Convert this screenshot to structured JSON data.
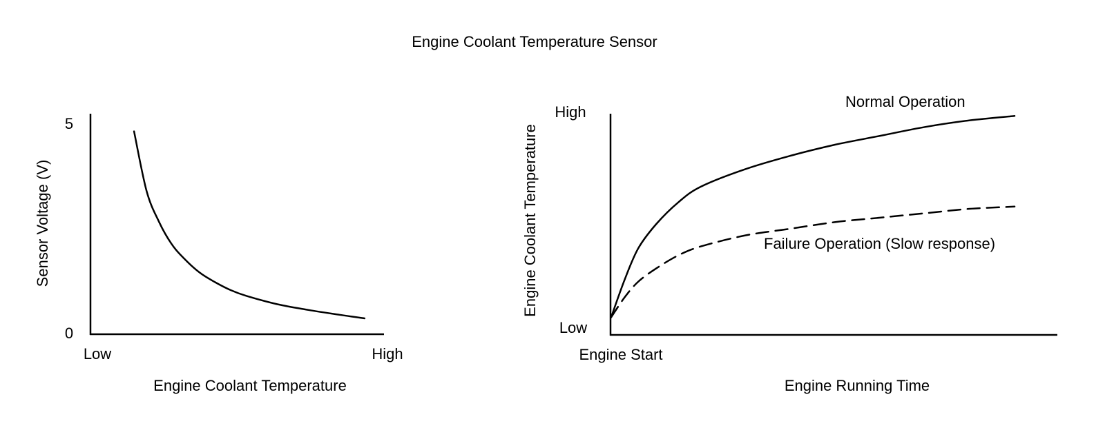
{
  "figure": {
    "title": "Engine Coolant Temperature Sensor"
  },
  "chart_data": [
    {
      "type": "line",
      "title": "",
      "xlabel": "Engine Coolant Temperature",
      "ylabel": "Sensor Voltage (V)",
      "x_ticks": [
        "Low",
        "High"
      ],
      "y_ticks": [
        "0",
        "5"
      ],
      "xlim": [
        0,
        1
      ],
      "ylim": [
        0,
        5
      ],
      "grid": false,
      "series": [
        {
          "name": "",
          "style": "solid",
          "color": "#000000",
          "x": [
            0.14,
            0.18,
            0.22,
            0.26,
            0.3,
            0.35,
            0.4,
            0.45,
            0.5,
            0.6,
            0.7,
            0.8,
            0.88
          ],
          "y": [
            4.6,
            3.25,
            2.55,
            2.05,
            1.72,
            1.4,
            1.18,
            1.0,
            0.87,
            0.68,
            0.55,
            0.44,
            0.36
          ]
        }
      ]
    },
    {
      "type": "line",
      "title": "",
      "xlabel": "Engine Running Time",
      "ylabel": "Engine Coolant Temperature",
      "x_ticks": [
        "Engine Start"
      ],
      "y_ticks": [
        "Low",
        "High"
      ],
      "xlim": [
        0,
        1
      ],
      "ylim": [
        0,
        1
      ],
      "grid": false,
      "series": [
        {
          "name": "Normal Operation",
          "style": "solid",
          "color": "#000000",
          "x": [
            0.0,
            0.03,
            0.06,
            0.1,
            0.15,
            0.2,
            0.3,
            0.4,
            0.5,
            0.6,
            0.7,
            0.8,
            0.9
          ],
          "y": [
            0.08,
            0.25,
            0.39,
            0.5,
            0.6,
            0.67,
            0.75,
            0.81,
            0.86,
            0.9,
            0.94,
            0.97,
            0.99
          ]
        },
        {
          "name": "Failure Operation (Slow response)",
          "style": "dashed",
          "color": "#000000",
          "x": [
            0.0,
            0.03,
            0.06,
            0.1,
            0.15,
            0.2,
            0.3,
            0.4,
            0.5,
            0.6,
            0.7,
            0.8,
            0.9
          ],
          "y": [
            0.08,
            0.17,
            0.24,
            0.3,
            0.36,
            0.4,
            0.45,
            0.48,
            0.51,
            0.53,
            0.55,
            0.57,
            0.58
          ]
        }
      ]
    }
  ]
}
